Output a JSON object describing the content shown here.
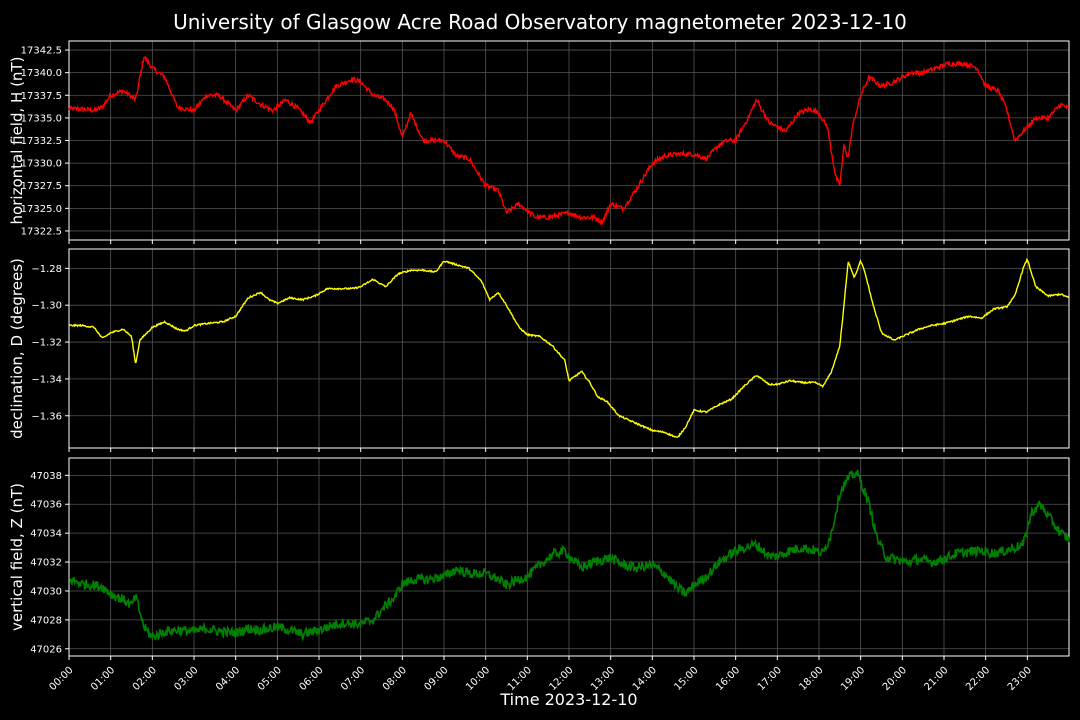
{
  "title": "University of Glasgow Acre Road Observatory magnetometer 2023-12-10",
  "xlabel": "Time 2023-12-10",
  "colors": {
    "background": "#000000",
    "grid": "#555555",
    "axis": "#ffffff",
    "H": "#ff0000",
    "D": "#ffff00",
    "Z": "#008000"
  },
  "chart_data": [
    {
      "type": "line",
      "name": "H",
      "ylabel": "horizontal field, H (nT)",
      "xlim": [
        0,
        24
      ],
      "ylim": [
        17321.5,
        17343.5
      ],
      "yticks": [
        "17322.5",
        "17325.0",
        "17327.5",
        "17330.0",
        "17332.5",
        "17335.0",
        "17337.5",
        "17340.0",
        "17342.5"
      ],
      "xticks": [
        "00:00",
        "01:00",
        "02:00",
        "03:00",
        "04:00",
        "05:00",
        "06:00",
        "07:00",
        "08:00",
        "09:00",
        "10:00",
        "11:00",
        "12:00",
        "13:00",
        "14:00",
        "15:00",
        "16:00",
        "17:00",
        "18:00",
        "19:00",
        "20:00",
        "21:00",
        "22:00",
        "23:00"
      ],
      "grid": true,
      "series": [
        {
          "x": [
            0,
            0.3,
            0.6,
            0.8,
            1.0,
            1.3,
            1.6,
            1.8,
            2.0,
            2.3,
            2.6,
            3.0,
            3.3,
            3.6,
            4.0,
            4.3,
            4.6,
            4.9,
            5.2,
            5.5,
            5.8,
            6.1,
            6.4,
            6.8,
            7.0,
            7.3,
            7.6,
            7.8,
            8.0,
            8.2,
            8.5,
            9.0,
            9.3,
            9.6,
            10.0,
            10.3,
            10.5,
            10.8,
            11.2,
            11.5,
            12.0,
            12.3,
            12.6,
            12.8,
            13.0,
            13.3,
            13.6,
            14.0,
            14.3,
            14.6,
            15.0,
            15.3,
            15.6,
            15.8,
            16.0,
            16.3,
            16.5,
            16.8,
            17.0,
            17.2,
            17.5,
            17.8,
            18.0,
            18.2,
            18.4,
            18.5,
            18.6,
            18.7,
            18.8,
            19.0,
            19.2,
            19.5,
            19.8,
            20.2,
            20.5,
            20.8,
            21.1,
            21.5,
            21.8,
            22.0,
            22.3,
            22.5,
            22.7,
            22.9,
            23.2,
            23.5,
            23.8,
            24.0
          ],
          "y": [
            17336.0,
            17336.0,
            17335.8,
            17336.2,
            17337.5,
            17338.0,
            17337.0,
            17341.8,
            17340.5,
            17339.5,
            17336.2,
            17335.8,
            17337.5,
            17337.5,
            17335.8,
            17337.5,
            17336.5,
            17335.8,
            17337.0,
            17336.0,
            17334.5,
            17336.5,
            17338.5,
            17339.3,
            17339.0,
            17337.5,
            17337.0,
            17336.0,
            17332.8,
            17335.5,
            17332.5,
            17332.5,
            17330.8,
            17330.5,
            17327.5,
            17327.0,
            17324.5,
            17325.5,
            17324.0,
            17324.0,
            17324.5,
            17324.0,
            17324.0,
            17323.5,
            17325.5,
            17325.0,
            17327.0,
            17330.0,
            17330.8,
            17331.0,
            17331.0,
            17330.5,
            17332.0,
            17332.5,
            17332.5,
            17335.0,
            17337.0,
            17334.5,
            17334.0,
            17333.5,
            17335.5,
            17336.0,
            17335.5,
            17334.0,
            17328.5,
            17327.5,
            17332.0,
            17330.5,
            17334.0,
            17337.5,
            17339.5,
            17338.5,
            17339.0,
            17340.0,
            17340.0,
            17340.5,
            17341.0,
            17341.0,
            17340.5,
            17338.5,
            17338.0,
            17336.0,
            17332.5,
            17333.5,
            17335.0,
            17335.0,
            17336.5,
            17336.0
          ]
        }
      ]
    },
    {
      "type": "line",
      "name": "D",
      "ylabel": "declination, D (degrees)",
      "xlim": [
        0,
        24
      ],
      "ylim": [
        -1.3775,
        -1.2695
      ],
      "yticks": [
        "−1.36",
        "−1.34",
        "−1.32",
        "−1.30",
        "−1.28"
      ],
      "grid": true,
      "series": [
        {
          "x": [
            0,
            0.3,
            0.6,
            0.8,
            1.0,
            1.3,
            1.5,
            1.6,
            1.7,
            2.0,
            2.3,
            2.6,
            2.8,
            3.0,
            3.3,
            3.7,
            4.0,
            4.3,
            4.6,
            4.8,
            5.0,
            5.3,
            5.6,
            5.9,
            6.2,
            6.5,
            6.8,
            7.0,
            7.3,
            7.6,
            7.9,
            8.2,
            8.5,
            8.8,
            9.0,
            9.3,
            9.6,
            9.9,
            10.1,
            10.3,
            10.5,
            10.8,
            11.0,
            11.3,
            11.6,
            11.9,
            12.0,
            12.3,
            12.5,
            12.7,
            12.9,
            13.2,
            13.5,
            13.8,
            14.0,
            14.3,
            14.6,
            14.8,
            15.0,
            15.3,
            15.6,
            15.9,
            16.2,
            16.5,
            16.8,
            17.0,
            17.3,
            17.6,
            17.9,
            18.1,
            18.3,
            18.5,
            18.6,
            18.7,
            18.85,
            19.0,
            19.1,
            19.3,
            19.5,
            19.8,
            20.1,
            20.4,
            20.7,
            21.0,
            21.3,
            21.6,
            21.9,
            22.2,
            22.5,
            22.7,
            22.9,
            23.0,
            23.2,
            23.5,
            23.8,
            24.0
          ],
          "y": [
            -1.311,
            -1.311,
            -1.312,
            -1.318,
            -1.315,
            -1.313,
            -1.317,
            -1.332,
            -1.319,
            -1.312,
            -1.309,
            -1.313,
            -1.314,
            -1.311,
            -1.31,
            -1.309,
            -1.306,
            -1.296,
            -1.293,
            -1.297,
            -1.299,
            -1.296,
            -1.297,
            -1.295,
            -1.291,
            -1.291,
            -1.291,
            -1.29,
            -1.286,
            -1.29,
            -1.283,
            -1.281,
            -1.281,
            -1.282,
            -1.276,
            -1.278,
            -1.28,
            -1.287,
            -1.297,
            -1.293,
            -1.3,
            -1.312,
            -1.316,
            -1.317,
            -1.322,
            -1.33,
            -1.341,
            -1.336,
            -1.342,
            -1.35,
            -1.352,
            -1.36,
            -1.363,
            -1.366,
            -1.368,
            -1.369,
            -1.372,
            -1.366,
            -1.357,
            -1.358,
            -1.354,
            -1.351,
            -1.344,
            -1.338,
            -1.343,
            -1.343,
            -1.341,
            -1.342,
            -1.342,
            -1.344,
            -1.336,
            -1.322,
            -1.3,
            -1.276,
            -1.285,
            -1.276,
            -1.282,
            -1.3,
            -1.315,
            -1.319,
            -1.316,
            -1.313,
            -1.311,
            -1.31,
            -1.308,
            -1.306,
            -1.307,
            -1.302,
            -1.301,
            -1.295,
            -1.28,
            -1.275,
            -1.29,
            -1.295,
            -1.294,
            -1.296
          ]
        }
      ]
    },
    {
      "type": "line",
      "name": "Z",
      "ylabel": "vertical field, Z (nT)",
      "xlim": [
        0,
        24
      ],
      "ylim": [
        47025.5,
        47039.2
      ],
      "yticks": [
        "47026",
        "47028",
        "47030",
        "47032",
        "47034",
        "47036",
        "47038"
      ],
      "grid": true,
      "series": [
        {
          "x": [
            0,
            0.3,
            0.6,
            0.8,
            1.0,
            1.3,
            1.5,
            1.6,
            1.8,
            2.0,
            2.3,
            2.6,
            3.0,
            3.3,
            3.6,
            4.0,
            4.3,
            4.6,
            5.0,
            5.3,
            5.6,
            6.0,
            6.3,
            6.6,
            7.0,
            7.3,
            7.6,
            7.8,
            8.0,
            8.3,
            8.6,
            9.0,
            9.3,
            9.6,
            10.0,
            10.3,
            10.5,
            10.8,
            11.0,
            11.3,
            11.6,
            11.9,
            12.0,
            12.3,
            12.6,
            13.0,
            13.3,
            13.6,
            14.0,
            14.3,
            14.6,
            14.8,
            15.0,
            15.3,
            15.6,
            15.9,
            16.2,
            16.5,
            16.8,
            17.0,
            17.3,
            17.6,
            17.9,
            18.1,
            18.3,
            18.5,
            18.7,
            18.9,
            19.0,
            19.2,
            19.4,
            19.6,
            19.8,
            20.1,
            20.4,
            20.7,
            21.0,
            21.3,
            21.6,
            21.9,
            22.2,
            22.5,
            22.7,
            22.9,
            23.1,
            23.3,
            23.5,
            23.8,
            24.0
          ],
          "y": [
            47030.8,
            47030.5,
            47030.4,
            47030.3,
            47029.8,
            47029.4,
            47029.0,
            47029.6,
            47027.5,
            47026.8,
            47027.2,
            47027.3,
            47027.2,
            47027.4,
            47027.2,
            47027.1,
            47027.4,
            47027.3,
            47027.5,
            47027.3,
            47027.0,
            47027.3,
            47027.6,
            47027.8,
            47027.7,
            47028.0,
            47029.0,
            47029.5,
            47030.5,
            47030.8,
            47030.8,
            47031.0,
            47031.5,
            47031.2,
            47031.2,
            47030.8,
            47030.4,
            47030.8,
            47031.0,
            47031.8,
            47032.5,
            47032.8,
            47032.4,
            47031.6,
            47032.0,
            47032.3,
            47031.8,
            47031.6,
            47031.8,
            47031.2,
            47030.2,
            47029.8,
            47030.4,
            47031.0,
            47032.0,
            47032.6,
            47033.0,
            47033.2,
            47032.4,
            47032.4,
            47032.8,
            47033.0,
            47032.8,
            47032.6,
            47034.0,
            47036.8,
            47037.8,
            47038.2,
            47037.6,
            47036.0,
            47033.6,
            47032.4,
            47032.2,
            47032.0,
            47032.2,
            47032.0,
            47032.2,
            47032.6,
            47032.7,
            47032.8,
            47032.6,
            47032.8,
            47033.0,
            47033.2,
            47035.4,
            47036.0,
            47035.2,
            47034.0,
            47033.6
          ]
        }
      ]
    }
  ]
}
